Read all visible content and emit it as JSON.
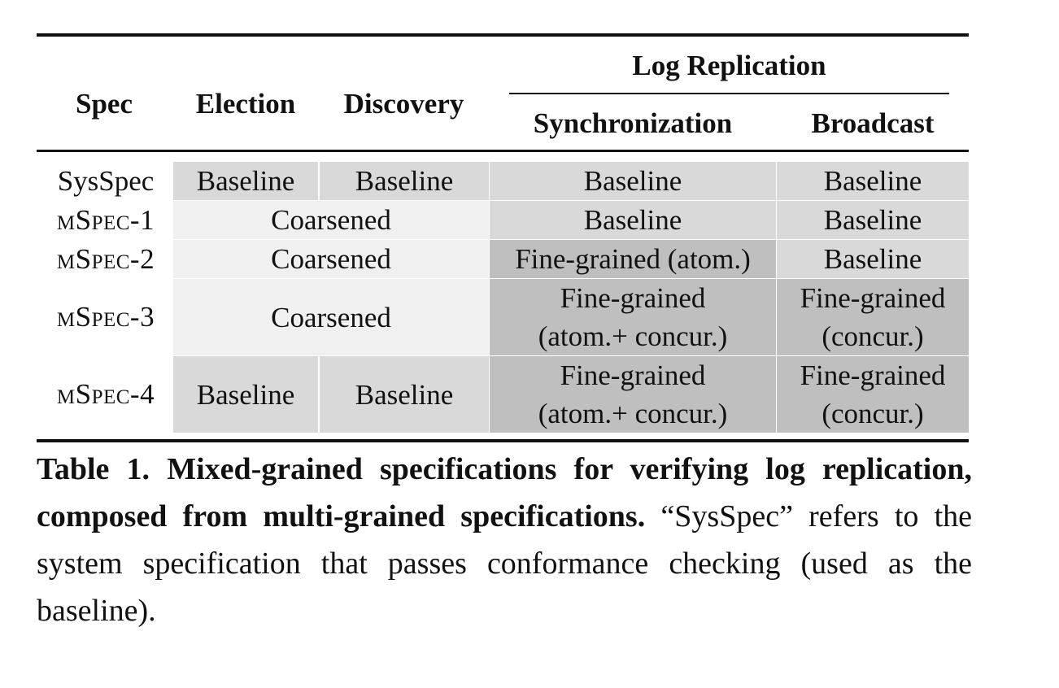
{
  "table": {
    "header": {
      "spec": "Spec",
      "election": "Election",
      "discovery": "Discovery",
      "log_replication": "Log Replication",
      "synchronization": "Synchronization",
      "broadcast": "Broadcast"
    },
    "rows": [
      {
        "label": "SysSpec",
        "cells": [
          "Baseline",
          "Baseline",
          "Baseline",
          "Baseline"
        ]
      },
      {
        "label": "mSpec-1",
        "cells": [
          "Coarsened",
          "Baseline",
          "Baseline"
        ]
      },
      {
        "label": "mSpec-2",
        "cells": [
          "Coarsened",
          "Fine-grained (atom.)",
          "Baseline"
        ]
      },
      {
        "label": "mSpec-3",
        "cells": [
          "Coarsened",
          "Fine-grained",
          "(atom.+ concur.)",
          "Fine-grained",
          "(concur.)"
        ]
      },
      {
        "label": "mSpec-4",
        "cells": [
          "Baseline",
          "Baseline",
          "Fine-grained",
          "(atom.+ concur.)",
          "Fine-grained",
          "(concur.)"
        ]
      }
    ]
  },
  "caption": {
    "bold_part": "Table 1. Mixed-grained specifications for verifying log replication, composed from multi-grained specifications.",
    "normal_part": "“SysSpec” refers to the system specification that passes conformance checking (used as the baseline)."
  },
  "colors": {
    "baseline": "#d9d9d9",
    "coarsened": "#f0f0f0",
    "fine_grained": "#bfbfbf"
  }
}
